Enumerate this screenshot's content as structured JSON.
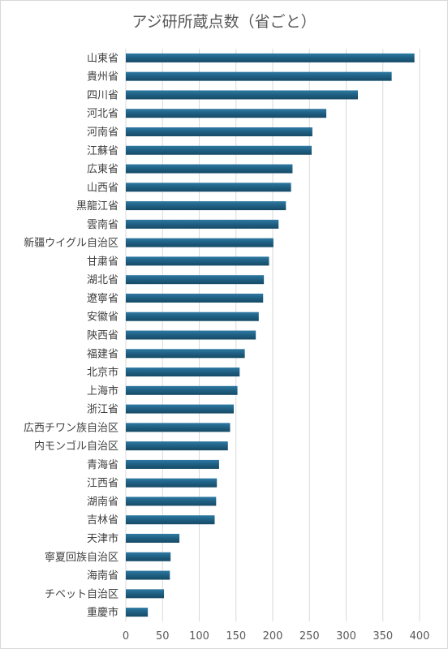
{
  "chart_data": {
    "type": "bar",
    "orientation": "horizontal",
    "title": "アジ研所蔵点数（省ごと）",
    "categories": [
      "山東省",
      "貴州省",
      "四川省",
      "河北省",
      "河南省",
      "江蘇省",
      "広東省",
      "山西省",
      "黒龍江省",
      "雲南省",
      "新疆ウイグル自治区",
      "甘粛省",
      "湖北省",
      "遼寧省",
      "安徽省",
      "陝西省",
      "福建省",
      "北京市",
      "上海市",
      "浙江省",
      "広西チワン族自治区",
      "内モンゴル自治区",
      "青海省",
      "江西省",
      "湖南省",
      "吉林省",
      "天津市",
      "寧夏回族自治区",
      "海南省",
      "チベット自治区",
      "重慶市"
    ],
    "values": [
      393,
      362,
      316,
      273,
      254,
      253,
      227,
      225,
      218,
      208,
      201,
      195,
      188,
      187,
      181,
      177,
      162,
      155,
      152,
      147,
      142,
      139,
      127,
      124,
      123,
      121,
      73,
      61,
      60,
      52,
      30
    ],
    "xlim": [
      0,
      400
    ],
    "xticks": [
      "0",
      "50",
      "100",
      "150",
      "200",
      "250",
      "300",
      "350",
      "400"
    ],
    "bar_color": "#1f5f82",
    "grid": true
  }
}
